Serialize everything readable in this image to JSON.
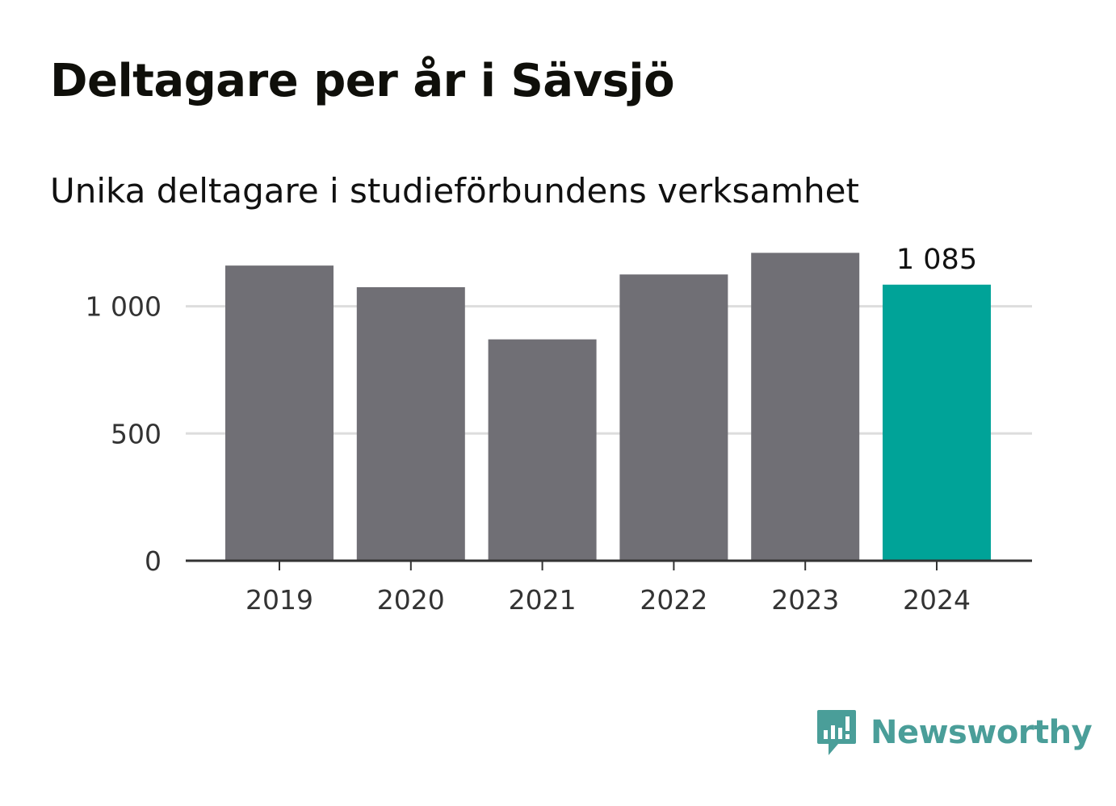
{
  "title": "Deltagare per år i Sävsjö",
  "subtitle": "Unika deltagare i studieförbundens verksamhet",
  "brand": {
    "name": "Newsworthy",
    "icon": "newsworthy-logo-icon",
    "color": "#4a9e99"
  },
  "chart_data": {
    "type": "bar",
    "categories": [
      "2019",
      "2020",
      "2021",
      "2022",
      "2023",
      "2024"
    ],
    "values": [
      1160,
      1075,
      870,
      1125,
      1210,
      1085
    ],
    "highlight_index": 5,
    "highlight_label": "1 085",
    "ylim": [
      0,
      1300
    ],
    "yticks": [
      0,
      500,
      1000
    ],
    "ytick_labels": [
      "0",
      "500",
      "1 000"
    ],
    "grid": true,
    "bar_color": "#706f75",
    "highlight_color": "#00a398",
    "grid_color": "#dddddd",
    "axis_color": "#333333"
  }
}
